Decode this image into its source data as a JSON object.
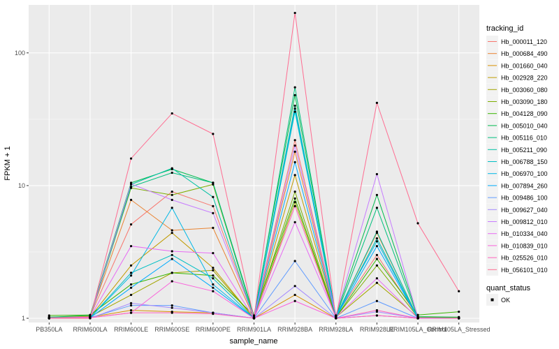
{
  "chart_data": {
    "type": "line",
    "title": "",
    "xlabel": "sample_name",
    "ylabel": "FPKM + 1",
    "y_scale": "log10",
    "ylim": [
      0.93,
      230
    ],
    "y_ticks": [
      1,
      10,
      100
    ],
    "y_tick_labels": [
      "1",
      "10",
      "100"
    ],
    "categories": [
      "PB350LA",
      "RRIM600LA",
      "RRIM600LE",
      "RRIM600SE",
      "RRIM600PE",
      "RRIM901LA",
      "RRIM928BA",
      "RRIM928LA",
      "RRIM928LE",
      "RRIM105LA_Control",
      "RRIM105LA_Stressed"
    ],
    "grid": true,
    "background": "#ebebeb",
    "legend": {
      "position": "right",
      "title": "tracking_id",
      "entries": [
        "Hb_000011_120",
        "Hb_000684_490",
        "Hb_001660_040",
        "Hb_002928_220",
        "Hb_003060_080",
        "Hb_003090_180",
        "Hb_004128_090",
        "Hb_005010_040",
        "Hb_005116_010",
        "Hb_005211_090",
        "Hb_006788_150",
        "Hb_006970_100",
        "Hb_007894_260",
        "Hb_009486_100",
        "Hb_009627_040",
        "Hb_009812_010",
        "Hb_010334_040",
        "Hb_010839_010",
        "Hb_025526_010",
        "Hb_056101_010"
      ]
    },
    "quant_legend": {
      "title": "quant_status",
      "entries": [
        "OK"
      ]
    },
    "series": [
      {
        "name": "Hb_000011_120",
        "color": "#F8766D",
        "values": [
          1.02,
          1.04,
          5.1,
          9.0,
          7.0,
          1.02,
          22.0,
          1.05,
          3.0,
          1.02,
          1.01
        ]
      },
      {
        "name": "Hb_000684_490",
        "color": "#EA8331",
        "values": [
          1.01,
          1.03,
          7.8,
          4.6,
          4.8,
          1.01,
          18.0,
          1.03,
          4.4,
          1.01,
          1.0
        ]
      },
      {
        "name": "Hb_001660_040",
        "color": "#D89000",
        "values": [
          1.0,
          1.02,
          1.15,
          1.12,
          1.1,
          1.0,
          1.5,
          1.0,
          1.05,
          1.0,
          1.0
        ]
      },
      {
        "name": "Hb_002928_220",
        "color": "#C09B00",
        "values": [
          1.0,
          1.02,
          2.5,
          4.4,
          2.4,
          1.0,
          12.0,
          1.02,
          4.0,
          1.0,
          1.0
        ]
      },
      {
        "name": "Hb_003060_080",
        "color": "#A3A500",
        "values": [
          1.0,
          1.03,
          1.5,
          2.2,
          2.3,
          1.0,
          7.5,
          1.02,
          1.85,
          1.02,
          1.0
        ]
      },
      {
        "name": "Hb_003090_180",
        "color": "#7CAE00",
        "values": [
          1.02,
          1.02,
          9.6,
          8.5,
          10.2,
          1.02,
          9.0,
          1.02,
          2.5,
          1.02,
          1.02
        ]
      },
      {
        "name": "Hb_004128_090",
        "color": "#39B600",
        "values": [
          1.05,
          1.06,
          1.8,
          2.2,
          2.1,
          1.05,
          8.0,
          1.02,
          2.8,
          1.06,
          1.12
        ]
      },
      {
        "name": "Hb_005010_040",
        "color": "#00BB4E",
        "values": [
          1.02,
          1.05,
          10.5,
          13.3,
          10.5,
          1.05,
          48.0,
          1.05,
          8.5,
          1.03,
          1.02
        ]
      },
      {
        "name": "Hb_005116_010",
        "color": "#00BF7D",
        "values": [
          1.0,
          1.02,
          9.8,
          12.5,
          10.5,
          1.02,
          55.0,
          1.03,
          6.8,
          1.01,
          1.0
        ]
      },
      {
        "name": "Hb_005211_090",
        "color": "#00C1A3",
        "values": [
          1.0,
          1.01,
          10.2,
          13.5,
          8.2,
          1.0,
          40.0,
          1.03,
          4.5,
          1.0,
          1.0
        ]
      },
      {
        "name": "Hb_006788_150",
        "color": "#00BFC4",
        "values": [
          1.0,
          1.01,
          2.2,
          3.0,
          2.0,
          1.0,
          36.0,
          1.02,
          4.0,
          1.0,
          1.0
        ]
      },
      {
        "name": "Hb_006970_100",
        "color": "#00B8E5",
        "values": [
          1.0,
          1.01,
          2.1,
          6.8,
          1.8,
          1.0,
          38.0,
          1.05,
          3.8,
          1.0,
          1.0
        ]
      },
      {
        "name": "Hb_007894_260",
        "color": "#00ABFD",
        "values": [
          1.0,
          1.01,
          1.7,
          2.8,
          1.7,
          1.0,
          15.0,
          1.02,
          3.5,
          1.0,
          1.0
        ]
      },
      {
        "name": "Hb_009486_100",
        "color": "#619CFF",
        "values": [
          1.0,
          1.01,
          1.25,
          1.25,
          1.1,
          1.0,
          2.7,
          1.0,
          1.35,
          1.0,
          1.0
        ]
      },
      {
        "name": "Hb_009627_040",
        "color": "#A58AFF",
        "values": [
          1.0,
          1.0,
          1.3,
          1.2,
          1.1,
          1.0,
          1.75,
          1.0,
          1.12,
          1.0,
          1.0
        ]
      },
      {
        "name": "Hb_009812_010",
        "color": "#C77CFF",
        "values": [
          1.01,
          1.02,
          10.3,
          7.8,
          6.2,
          1.01,
          20.0,
          1.05,
          12.2,
          1.01,
          1.0
        ]
      },
      {
        "name": "Hb_010334_040",
        "color": "#E76BF3",
        "values": [
          1.0,
          1.02,
          3.5,
          3.2,
          3.1,
          1.0,
          5.3,
          1.02,
          2.0,
          1.0,
          1.0
        ]
      },
      {
        "name": "Hb_010839_010",
        "color": "#FA62DB",
        "values": [
          1.0,
          1.01,
          1.1,
          1.9,
          1.6,
          1.0,
          1.35,
          1.0,
          1.05,
          1.0,
          1.0
        ]
      },
      {
        "name": "Hb_025526_010",
        "color": "#FF62BC",
        "values": [
          1.0,
          1.01,
          1.1,
          1.1,
          1.08,
          1.0,
          7.0,
          1.0,
          1.15,
          1.0,
          1.0
        ]
      },
      {
        "name": "Hb_056101_010",
        "color": "#FF6C91",
        "values": [
          1.0,
          1.0,
          16.0,
          35.0,
          24.5,
          1.0,
          200.0,
          1.0,
          42.0,
          5.2,
          1.6
        ]
      }
    ]
  }
}
